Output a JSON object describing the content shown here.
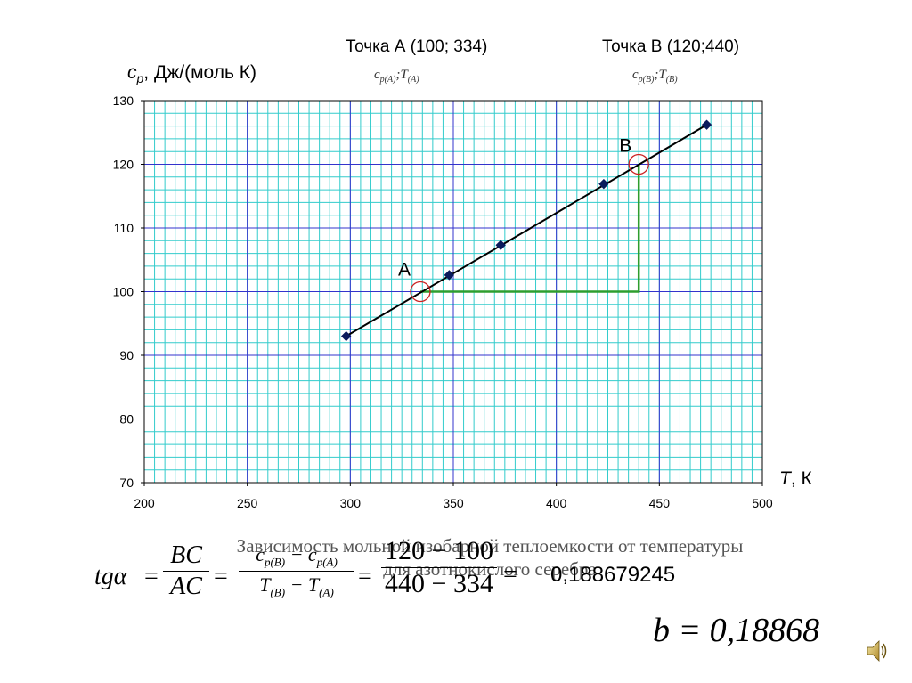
{
  "header": {
    "pointA_label": "Точка А (100; 334)",
    "pointA_sub": "cp(A);T(A)",
    "pointB_label": "Точка В (120;440)",
    "pointB_sub": "cp(B);T(B)"
  },
  "chart_data": {
    "type": "scatter",
    "ylabel_main": "c",
    "ylabel_sub": "p",
    "ylabel_rest": ", Дж/(моль К)",
    "xlabel": "T, К",
    "xlim": [
      200,
      500
    ],
    "ylim": [
      70,
      130
    ],
    "xticks": [
      200,
      250,
      300,
      350,
      400,
      450,
      500
    ],
    "yticks": [
      70,
      80,
      90,
      100,
      110,
      120,
      130
    ],
    "grid": true,
    "series": [
      {
        "x": [
          298,
          348,
          373,
          423,
          473
        ],
        "y": [
          93.0,
          102.6,
          107.3,
          116.9,
          126.2
        ],
        "marker": "diamond",
        "color": "#0a1a5c"
      }
    ],
    "fit_line": {
      "x": [
        298,
        473
      ],
      "y": [
        93.0,
        126.2
      ]
    },
    "annotations": [
      {
        "label": "А",
        "x": 334,
        "y": 100
      },
      {
        "label": "В",
        "x": 440,
        "y": 120
      }
    ],
    "colors": {
      "minor_grid": "#33cccc",
      "major_grid": "#3333cc",
      "triangle": "#2e9e2e",
      "circle": "#cc2222"
    }
  },
  "caption": {
    "line1": "Зависимость мольной изобарной теплоемкости от температуры",
    "line2": "для азотнокислого серебра"
  },
  "formula": {
    "lhs": "tgα",
    "frac1_num": "BC",
    "frac1_den": "AC",
    "frac2_num": "cp(B) − cp(A)",
    "frac2_den": "T(B) − T(A)",
    "frac3_num": "120 − 100",
    "frac3_den": "440 − 334",
    "result": "0,188679245",
    "b_formula": "b = 0,18868"
  }
}
